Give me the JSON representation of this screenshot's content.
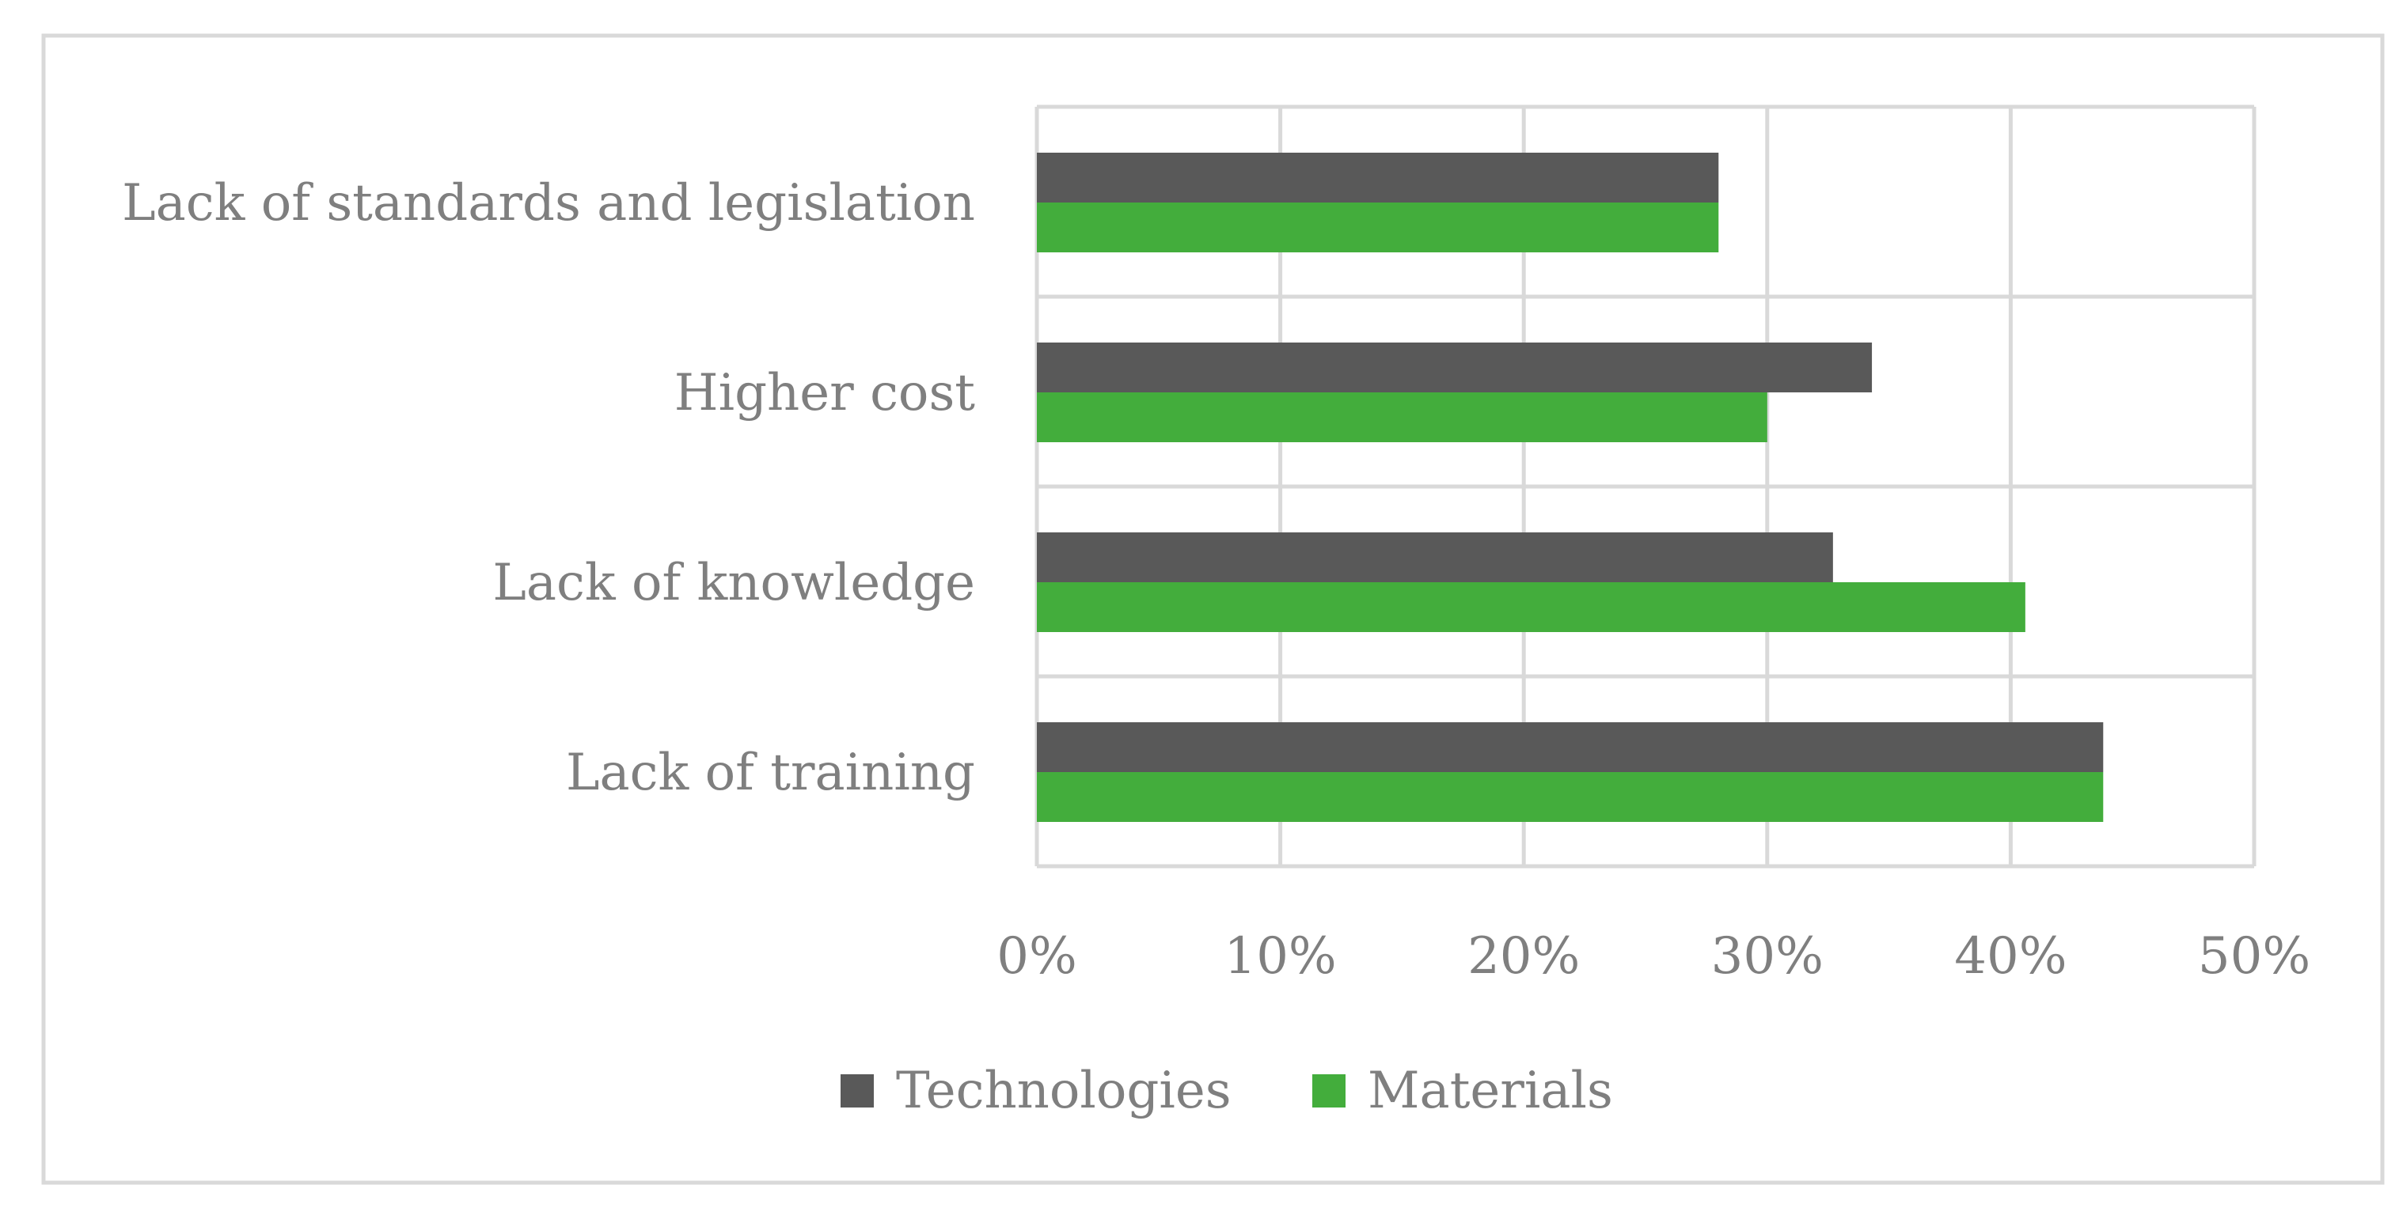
{
  "chart_data": {
    "type": "bar",
    "orientation": "horizontal",
    "categories": [
      "Lack of standards and legislation",
      "Higher cost",
      "Lack of knowledge",
      "Lack of training"
    ],
    "series": [
      {
        "name": "Technologies",
        "color": "#595959",
        "values": [
          28,
          34.3,
          32.7,
          43.8
        ]
      },
      {
        "name": "Materials",
        "color": "#43ad3c",
        "values": [
          28,
          30,
          40.6,
          43.8
        ]
      }
    ],
    "xlim": [
      0,
      50
    ],
    "x_ticks": [
      0,
      10,
      20,
      30,
      40,
      50
    ],
    "x_tick_labels": [
      "0%",
      "10%",
      "20%",
      "30%",
      "40%",
      "50%"
    ],
    "grid": true,
    "legend_position": "bottom",
    "colors": {
      "grid": "#d9d9d9",
      "border": "#d9d9d9",
      "text": "#7f7f7f",
      "background": "#ffffff"
    }
  }
}
